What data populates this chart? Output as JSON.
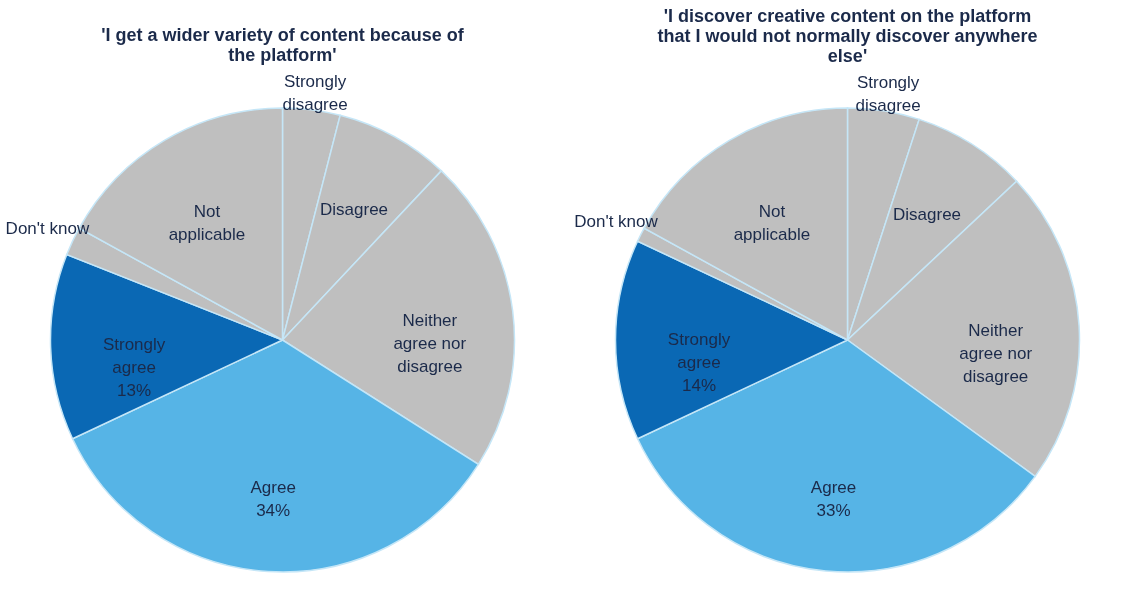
{
  "chart_data": [
    {
      "type": "pie",
      "title": "'I get a wider variety of content because of the platform'",
      "categories": [
        "Strongly disagree",
        "Disagree",
        "Neither agree nor disagree",
        "Agree",
        "Strongly agree",
        "Don't know",
        "Not applicable"
      ],
      "values": [
        4,
        8,
        22,
        34,
        13,
        2,
        17
      ],
      "value_labels": [
        null,
        null,
        null,
        "34%",
        "13%",
        null,
        null
      ],
      "colors": [
        "#bfbfbf",
        "#bfbfbf",
        "#bfbfbf",
        "#56b4e6",
        "#0a68b4",
        "#bfbfbf",
        "#bfbfbf"
      ]
    },
    {
      "type": "pie",
      "title": "'I discover creative content on the platform that I would not normally discover anywhere else'",
      "categories": [
        "Strongly disagree",
        "Disagree",
        "Neither agree nor disagree",
        "Agree",
        "Strongly agree",
        "Don't know",
        "Not applicable"
      ],
      "values": [
        5,
        8,
        22,
        33,
        14,
        1,
        17
      ],
      "value_labels": [
        null,
        null,
        null,
        "33%",
        "14%",
        null,
        null
      ],
      "colors": [
        "#bfbfbf",
        "#bfbfbf",
        "#bfbfbf",
        "#56b4e6",
        "#0a68b4",
        "#bfbfbf",
        "#bfbfbf"
      ]
    }
  ]
}
